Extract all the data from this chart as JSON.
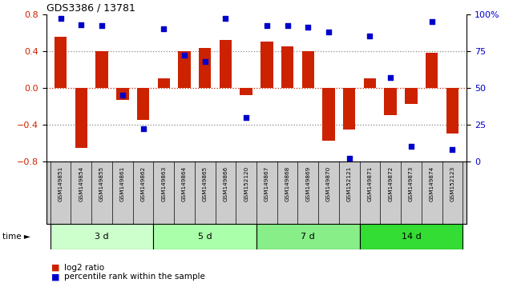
{
  "title": "GDS3386 / 13781",
  "samples": [
    "GSM149851",
    "GSM149854",
    "GSM149855",
    "GSM149861",
    "GSM149862",
    "GSM149863",
    "GSM149864",
    "GSM149865",
    "GSM149866",
    "GSM152120",
    "GSM149867",
    "GSM149868",
    "GSM149869",
    "GSM149870",
    "GSM152121",
    "GSM149871",
    "GSM149872",
    "GSM149873",
    "GSM149874",
    "GSM152123"
  ],
  "log2_ratio": [
    0.55,
    -0.65,
    0.4,
    -0.13,
    -0.35,
    0.1,
    0.4,
    0.43,
    0.52,
    -0.08,
    0.5,
    0.45,
    0.4,
    -0.58,
    -0.45,
    0.1,
    -0.3,
    -0.18,
    0.38,
    -0.5
  ],
  "percentile": [
    97,
    93,
    92,
    45,
    22,
    90,
    72,
    68,
    97,
    30,
    92,
    92,
    91,
    88,
    2,
    85,
    57,
    10,
    95,
    8
  ],
  "groups": [
    {
      "label": "3 d",
      "start": 0,
      "end": 5,
      "color": "#ccffcc"
    },
    {
      "label": "5 d",
      "start": 5,
      "end": 10,
      "color": "#aaffaa"
    },
    {
      "label": "7 d",
      "start": 10,
      "end": 15,
      "color": "#88ee88"
    },
    {
      "label": "14 d",
      "start": 15,
      "end": 20,
      "color": "#33dd33"
    }
  ],
  "bar_color": "#cc2200",
  "dot_color": "#0000cc",
  "ylim_left": [
    -0.8,
    0.8
  ],
  "ylim_right": [
    0,
    100
  ],
  "yticks_left": [
    -0.8,
    -0.4,
    0.0,
    0.4,
    0.8
  ],
  "yticks_right": [
    0,
    25,
    50,
    75,
    100
  ],
  "bg_color": "#ffffff",
  "header_bg": "#cccccc",
  "legend_red_label": "log2 ratio",
  "legend_blue_label": "percentile rank within the sample",
  "time_label": "time"
}
